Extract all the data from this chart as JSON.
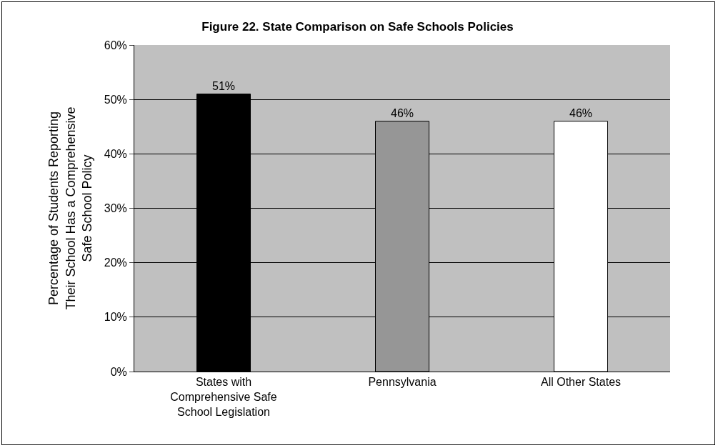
{
  "chart_data": {
    "type": "bar",
    "title": "Figure 22. State Comparison on Safe Schools Policies",
    "ylabel": "Percentage of Students Reporting Their School Has a Comprehensive Safe School Policy",
    "categories": [
      "States with Comprehensive Safe School Legislation",
      "Pennsylvania",
      "All Other States"
    ],
    "values": [
      51,
      46,
      46
    ],
    "colors": [
      "#000000",
      "#969696",
      "#ffffff"
    ],
    "value_labels": [
      "51%",
      "46%",
      "46%"
    ],
    "ylim": [
      0,
      60
    ],
    "yticks": [
      {
        "value": 0,
        "label": "0%"
      },
      {
        "value": 10,
        "label": "10%"
      },
      {
        "value": 20,
        "label": "20%"
      },
      {
        "value": 30,
        "label": "30%"
      },
      {
        "value": 40,
        "label": "40%"
      },
      {
        "value": 50,
        "label": "50%"
      },
      {
        "value": 60,
        "label": "60%"
      }
    ],
    "grid": "y"
  }
}
